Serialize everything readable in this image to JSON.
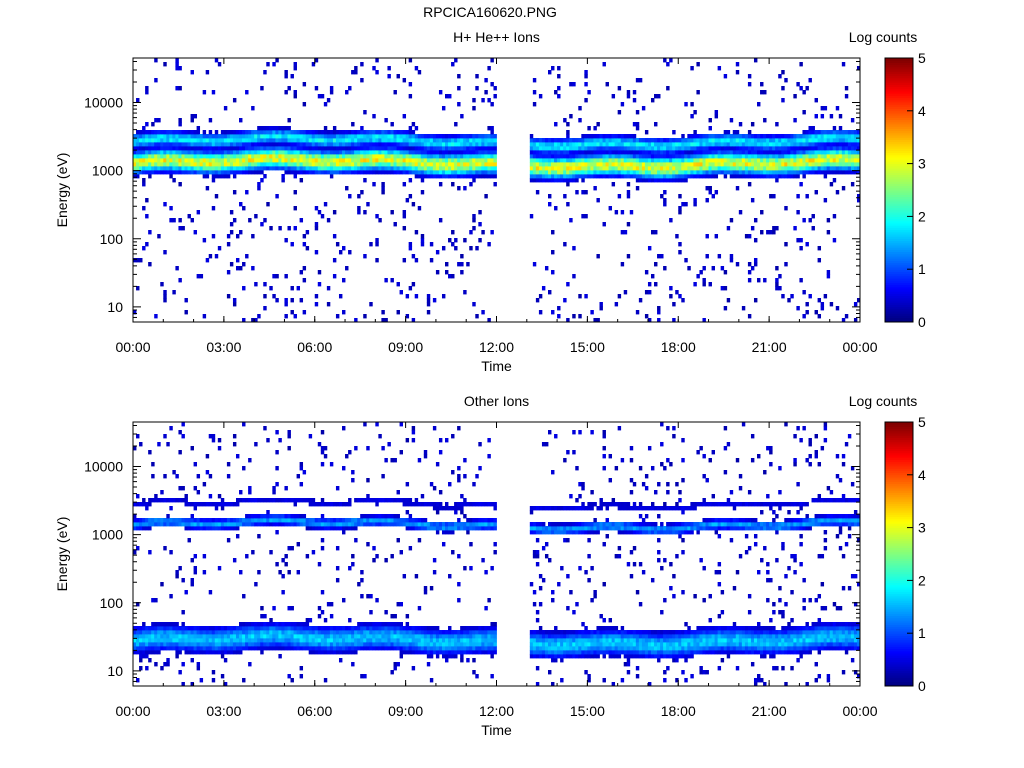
{
  "figure_title": "RPCICA160620.PNG",
  "chart_data": [
    {
      "type": "heatmap",
      "title": "H+ He++ Ions",
      "xlabel": "Time",
      "ylabel": "Energy (eV)",
      "x_tick_labels": [
        "00:00",
        "03:00",
        "06:00",
        "09:00",
        "12:00",
        "15:00",
        "18:00",
        "21:00",
        "00:00"
      ],
      "x_range_hours": [
        0,
        24
      ],
      "y_scale": "log",
      "y_ticks": [
        10,
        100,
        1000,
        10000
      ],
      "y_tick_labels": [
        "10",
        "100",
        "1000",
        "10000"
      ],
      "y_range_eV": [
        6,
        45000
      ],
      "data_gap_hours": [
        12.0,
        13.1
      ],
      "colorbar": {
        "label": "Log counts",
        "ticks": [
          "0",
          "1",
          "2",
          "3",
          "4",
          "5"
        ],
        "range": [
          0,
          5
        ]
      },
      "bands": [
        {
          "energy_eV": 1300,
          "peak_log_counts": 3.0,
          "spread_decades": 0.1
        },
        {
          "energy_eV": 2700,
          "peak_log_counts": 1.8,
          "spread_decades": 0.07
        }
      ],
      "background_scatter_log_counts": 0.2
    },
    {
      "type": "heatmap",
      "title": "Other Ions",
      "xlabel": "Time",
      "ylabel": "Energy (eV)",
      "x_tick_labels": [
        "00:00",
        "03:00",
        "06:00",
        "09:00",
        "12:00",
        "15:00",
        "18:00",
        "21:00",
        "00:00"
      ],
      "x_range_hours": [
        0,
        24
      ],
      "y_scale": "log",
      "y_ticks": [
        10,
        100,
        1000,
        10000
      ],
      "y_tick_labels": [
        "10",
        "100",
        "1000",
        "10000"
      ],
      "y_range_eV": [
        6,
        45000
      ],
      "data_gap_hours": [
        12.0,
        13.1
      ],
      "colorbar": {
        "label": "Log counts",
        "ticks": [
          "0",
          "1",
          "2",
          "3",
          "4",
          "5"
        ],
        "range": [
          0,
          5
        ]
      },
      "bands": [
        {
          "energy_eV": 1400,
          "peak_log_counts": 1.4,
          "spread_decades": 0.05
        },
        {
          "energy_eV": 2800,
          "peak_log_counts": 0.5,
          "spread_decades": 0.04
        },
        {
          "energy_eV": 28,
          "peak_log_counts": 1.6,
          "spread_decades": 0.12
        }
      ],
      "background_scatter_log_counts": 0.2
    }
  ]
}
